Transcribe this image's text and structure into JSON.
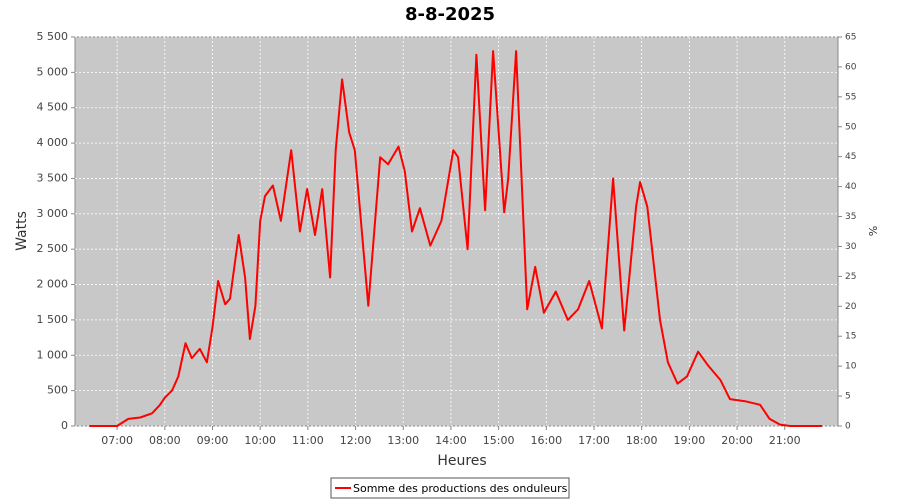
{
  "chart_data": {
    "type": "line",
    "title": "8-8-2025",
    "x_label": "Heures",
    "y_label": "Watts",
    "y2_label": "%",
    "x": [
      "06:25",
      "07:00",
      "07:14",
      "07:29",
      "07:44",
      "07:54",
      "08:00",
      "08:09",
      "08:17",
      "08:26",
      "08:34",
      "08:44",
      "08:53",
      "09:00",
      "09:07",
      "09:16",
      "09:22",
      "09:33",
      "09:41",
      "09:47",
      "09:54",
      "10:00",
      "10:06",
      "10:16",
      "10:26",
      "10:39",
      "10:50",
      "10:59",
      "11:09",
      "11:18",
      "11:28",
      "11:35",
      "11:43",
      "11:52",
      "11:59",
      "12:16",
      "12:31",
      "12:41",
      "12:54",
      "13:02",
      "13:11",
      "13:21",
      "13:34",
      "13:48",
      "14:03",
      "14:09",
      "14:21",
      "14:32",
      "14:43",
      "14:53",
      "15:07",
      "15:12",
      "15:22",
      "15:36",
      "15:46",
      "15:57",
      "16:12",
      "16:27",
      "16:40",
      "16:54",
      "17:10",
      "17:24",
      "17:38",
      "17:53",
      "17:58",
      "18:07",
      "18:23",
      "18:33",
      "18:45",
      "18:57",
      "19:11",
      "19:24",
      "19:39",
      "19:51",
      "20:10",
      "20:29",
      "20:41",
      "20:54",
      "21:07",
      "21:47"
    ],
    "series": [
      {
        "name": "Somme des productions des onduleurs",
        "color": "#ff0000",
        "values": [
          0,
          0,
          100,
          120,
          180,
          300,
          400,
          500,
          700,
          1170,
          960,
          1090,
          900,
          1400,
          2050,
          1720,
          1800,
          2700,
          2100,
          1230,
          1700,
          2900,
          3250,
          3400,
          2900,
          3900,
          2750,
          3350,
          2700,
          3350,
          2100,
          3900,
          4900,
          4150,
          3900,
          1700,
          3800,
          3700,
          3950,
          3600,
          2750,
          3080,
          2550,
          2900,
          3900,
          3800,
          2500,
          5250,
          3050,
          5300,
          3020,
          3500,
          5300,
          1650,
          2250,
          1600,
          1900,
          1500,
          1650,
          2050,
          1380,
          3500,
          1350,
          3100,
          3450,
          3100,
          1500,
          900,
          600,
          700,
          1050,
          850,
          650,
          380,
          350,
          300,
          100,
          20,
          0,
          0
        ]
      }
    ],
    "xlim": [
      "06:07",
      "22:07"
    ],
    "xticks": [
      "07:00",
      "08:00",
      "09:00",
      "10:00",
      "11:00",
      "12:00",
      "13:00",
      "14:00",
      "15:00",
      "16:00",
      "17:00",
      "18:00",
      "19:00",
      "20:00",
      "21:00"
    ],
    "ylim": [
      0,
      5500
    ],
    "yticks": [
      0,
      500,
      {
        "value": 1000,
        "label": "1 000"
      },
      {
        "value": 1500,
        "label": "1 500"
      },
      {
        "value": 2000,
        "label": "2 000"
      },
      {
        "value": 2500,
        "label": "2 500"
      },
      {
        "value": 3000,
        "label": "3 000"
      },
      {
        "value": 3500,
        "label": "3 500"
      },
      {
        "value": 4000,
        "label": "4 000"
      },
      {
        "value": 4500,
        "label": "4 500"
      },
      {
        "value": 5000,
        "label": "5 000"
      },
      {
        "value": 5500,
        "label": "5 500"
      }
    ],
    "y2lim": [
      0,
      65
    ],
    "y2ticks": [
      0,
      5,
      10,
      15,
      20,
      25,
      30,
      35,
      40,
      45,
      50,
      55,
      60,
      65
    ],
    "grid": true
  }
}
